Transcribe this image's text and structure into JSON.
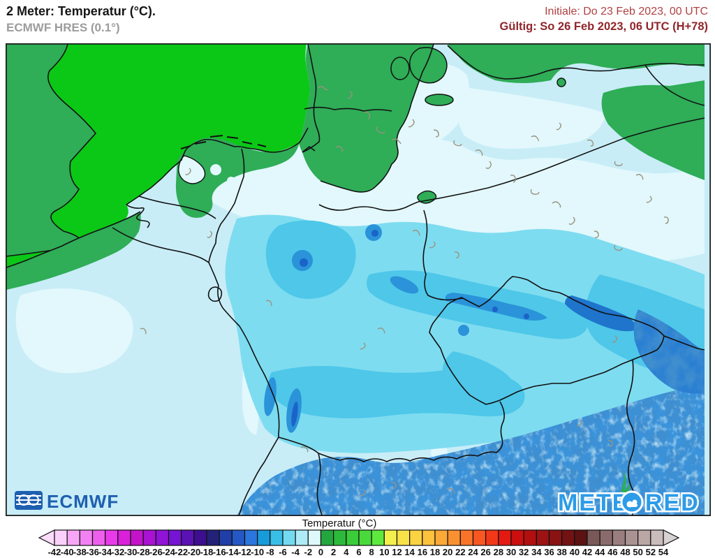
{
  "header": {
    "title": "2 Meter: Temperatur (°C).",
    "subtitle": "ECMWF HRES (0.1°)",
    "init_label": "Initiale: Do 23 Feb 2023, 00 UTC",
    "valid_label": "Gültig: So 26 Feb 2023, 06 UTC (H+78)",
    "init_color": "#b04143",
    "valid_color": "#8f262b"
  },
  "map": {
    "logos": {
      "ecmwf": "ECMWF",
      "ecmwf_color": "#1e5fb0",
      "meteored_pre": "METE",
      "meteored_post": "RED",
      "meteored_color": "#2d9ce8"
    },
    "legend_colors": {
      "warm_sea_green": "#0bc817",
      "mild_land_green": "#2fad57",
      "near_zero_pale": "#e2f8fc",
      "light_frost_cyan": "#c8edf7",
      "frost_cyan": "#7edcf0",
      "cold_cyan": "#4ec7e9",
      "cold_blue": "#2a93d9",
      "alpine_dark_blue": "#1b63c8"
    }
  },
  "colorbar": {
    "title": "Temperatur (°C)",
    "ticks": [
      "-42",
      "-40",
      "-38",
      "-36",
      "-34",
      "-32",
      "-30",
      "-28",
      "-26",
      "-24",
      "-22",
      "-20",
      "-18",
      "-16",
      "-14",
      "-12",
      "-10",
      "-8",
      "-6",
      "-4",
      "-2",
      "0",
      "2",
      "4",
      "6",
      "8",
      "10",
      "12",
      "14",
      "16",
      "18",
      "20",
      "22",
      "24",
      "26",
      "28",
      "30",
      "32",
      "34",
      "36",
      "38",
      "40",
      "42",
      "44",
      "46",
      "48",
      "50",
      "52",
      "54"
    ],
    "cells": [
      "#fbd0fb",
      "#f7a6f7",
      "#f282f2",
      "#ee5fee",
      "#e93ae9",
      "#d921d9",
      "#c414c9",
      "#a912d2",
      "#9013d8",
      "#7514d2",
      "#5a12b4",
      "#3d0f8e",
      "#232277",
      "#1f3ea8",
      "#2558c4",
      "#2b76dd",
      "#189bd9",
      "#38bee7",
      "#74daf1",
      "#aeebf7",
      "#def9fc",
      "#24a63f",
      "#2db93c",
      "#3bcc39",
      "#49d93a",
      "#5fe83e",
      "#f3ef4d",
      "#f9e148",
      "#fbd242",
      "#fcc13d",
      "#fbaa37",
      "#fa9130",
      "#f97429",
      "#f85722",
      "#f23819",
      "#e31a12",
      "#cb0f0e",
      "#b21010",
      "#9d1212",
      "#891313",
      "#731212",
      "#5c1212",
      "#7a5858",
      "#8a6b6b",
      "#9a7e7e",
      "#ab9292",
      "#bba6a6",
      "#cbbcbc"
    ],
    "arrow_left": "#fbdcfb",
    "arrow_right": "#d8d2d2"
  }
}
